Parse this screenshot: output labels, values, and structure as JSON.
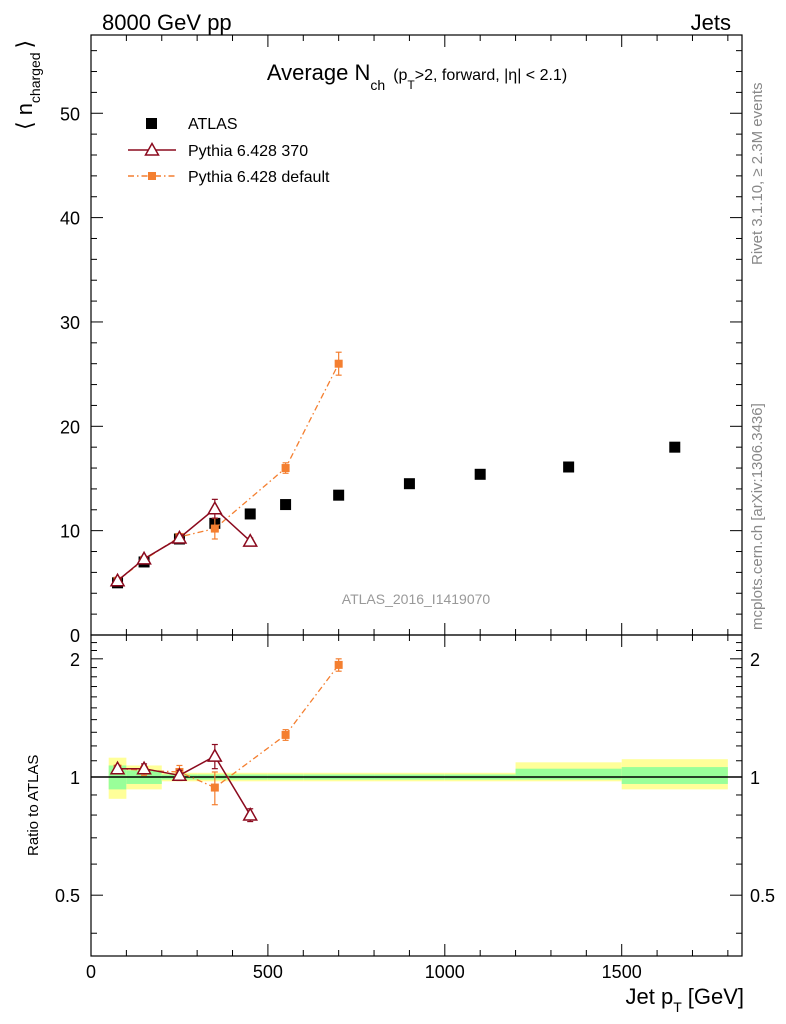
{
  "header": {
    "left": "8000 GeV pp",
    "right": "Jets"
  },
  "title": {
    "main": "Average N",
    "main_sub": "ch",
    "cut_open": "(p",
    "cut_sub": "T",
    "cut_rest": ">2, forward, |η| < 2.1)"
  },
  "side": {
    "rivet": "Rivet 3.1.10, ≥ 2.3M events",
    "mcplots": "mcplots.cern.ch [arXiv:1306.3436]"
  },
  "watermark": "ATLAS_2016_I1419070",
  "axes": {
    "ylabel_main_open": "⟨ n",
    "ylabel_main_sub": "charged",
    "ylabel_main_close": "⟩",
    "ylabel_ratio": "Ratio to ATLAS",
    "xlabel_main": "Jet p",
    "xlabel_sub": "T",
    "xlabel_unit": "[GeV]"
  },
  "legend": [
    {
      "label": "ATLAS",
      "color": "#000000",
      "marker": "square"
    },
    {
      "label": "Pythia 6.428 370",
      "color": "#8b0a1e",
      "marker": "open-triangle"
    },
    {
      "label": "Pythia 6.428 default",
      "color": "#f47f30",
      "marker": "square-dashdot"
    }
  ],
  "chart_data": {
    "type": "scatter",
    "xlim": [
      0,
      1840
    ],
    "ylim_main": [
      0,
      57.5
    ],
    "ylim_ratio": [
      0.35,
      2.3
    ],
    "xticks": [
      0,
      500,
      1000,
      1500
    ],
    "yticks_main": [
      0,
      10,
      20,
      30,
      40,
      50
    ],
    "yticks_ratio": [
      0.5,
      1,
      2
    ],
    "series": [
      {
        "name": "ATLAS",
        "x": [
          75,
          150,
          250,
          350,
          450,
          550,
          700,
          900,
          1100,
          1350,
          1650
        ],
        "xlo": [
          50,
          100,
          200,
          300,
          400,
          500,
          600,
          800,
          1000,
          1200,
          1500
        ],
        "xhi": [
          100,
          200,
          300,
          400,
          500,
          600,
          800,
          1000,
          1200,
          1500,
          1800
        ],
        "y": [
          5.0,
          7.0,
          9.2,
          10.7,
          11.6,
          12.5,
          13.4,
          14.5,
          15.4,
          16.1,
          18.0
        ]
      },
      {
        "name": "Pythia 6.428 370",
        "x": [
          75,
          150,
          250,
          350,
          450
        ],
        "y": [
          5.2,
          7.3,
          9.3,
          12.1,
          9.0
        ],
        "yerr": [
          0.2,
          0.2,
          0.3,
          0.9,
          0.3
        ],
        "ratio": [
          1.05,
          1.05,
          1.01,
          1.13,
          0.8
        ],
        "ratio_err": [
          0.02,
          0.03,
          0.03,
          0.08,
          0.03
        ]
      },
      {
        "name": "Pythia 6.428 default",
        "x": [
          75,
          150,
          250,
          350,
          550,
          700
        ],
        "y": [
          5.2,
          7.2,
          9.4,
          10.2,
          16.0,
          26.0
        ],
        "yerr": [
          0.2,
          0.2,
          0.3,
          1.0,
          0.5,
          1.1
        ],
        "ratio": [
          1.05,
          1.04,
          1.03,
          0.94,
          1.28,
          1.93
        ],
        "ratio_err": [
          0.02,
          0.03,
          0.04,
          0.09,
          0.04,
          0.07
        ]
      }
    ],
    "ratio_bands": {
      "x_edges": [
        50,
        100,
        200,
        300,
        400,
        500,
        600,
        800,
        1000,
        1200,
        1500,
        1800
      ],
      "green_lo": [
        0.93,
        0.96,
        0.985,
        0.985,
        0.985,
        0.985,
        0.985,
        0.985,
        0.985,
        0.985,
        0.96
      ],
      "green_hi": [
        1.07,
        1.04,
        1.015,
        1.015,
        1.015,
        1.015,
        1.015,
        1.015,
        1.015,
        1.05,
        1.06
      ],
      "yellow_lo": [
        0.88,
        0.93,
        0.975,
        0.975,
        0.975,
        0.975,
        0.975,
        0.975,
        0.975,
        0.975,
        0.93
      ],
      "yellow_hi": [
        1.12,
        1.07,
        1.025,
        1.025,
        1.025,
        1.025,
        1.025,
        1.025,
        1.025,
        1.09,
        1.11
      ]
    }
  }
}
